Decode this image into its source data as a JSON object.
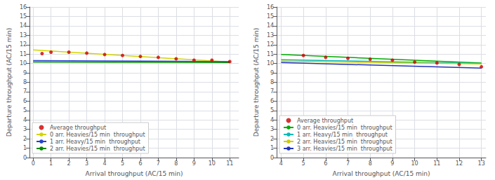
{
  "chart_data": [
    {
      "type": "scatter",
      "xlabel": "Arrival throughput (AC/15 min)",
      "ylabel": "Departure throughput (AC/15 min)",
      "xlim": [
        -0.2,
        11.5
      ],
      "ylim": [
        0,
        16
      ],
      "xticks": [
        0,
        1,
        2,
        3,
        4,
        5,
        6,
        7,
        8,
        9,
        10,
        11
      ],
      "yticks": [
        0,
        1,
        2,
        3,
        4,
        5,
        6,
        7,
        8,
        9,
        10,
        11,
        12,
        13,
        14,
        15,
        16
      ],
      "grid": true,
      "legend": "lower left",
      "series": [
        {
          "name": "Average throughput",
          "type": "scatter",
          "color": "#cc0000",
          "x": [
            0.5,
            1,
            2,
            3,
            4,
            5,
            6,
            7,
            8,
            9,
            10,
            11
          ],
          "values": [
            11.05,
            11.2,
            11.2,
            11.1,
            10.95,
            10.85,
            10.75,
            10.65,
            10.5,
            10.35,
            10.35,
            10.2
          ]
        },
        {
          "name": "0 arr. Heavies/15 min  throughput",
          "type": "line",
          "color": "#d4d400",
          "x": [
            0,
            11
          ],
          "values": [
            11.45,
            10.15
          ]
        },
        {
          "name": "1 arr. Heavy/15 min  throughput",
          "type": "line",
          "color": "#2244cc",
          "x": [
            0,
            11
          ],
          "values": [
            10.3,
            10.2
          ]
        },
        {
          "name": "2 arr. Heavies/15 min  throughput",
          "type": "line",
          "color": "#008800",
          "x": [
            0,
            11
          ],
          "values": [
            10.15,
            10.1
          ]
        }
      ]
    },
    {
      "type": "scatter",
      "xlabel": "Arrival throughput (AC/15 min)",
      "ylabel": "Departure throughput (AC/15 min)",
      "xlim": [
        3.8,
        13.2
      ],
      "ylim": [
        0,
        16
      ],
      "xticks": [
        4,
        5,
        6,
        7,
        8,
        9,
        10,
        11,
        12,
        13
      ],
      "yticks": [
        0,
        1,
        2,
        3,
        4,
        5,
        6,
        7,
        8,
        9,
        10,
        11,
        12,
        13,
        14,
        15,
        16
      ],
      "grid": true,
      "legend": "lower left",
      "series": [
        {
          "name": "Average throughput",
          "type": "scatter",
          "color": "#cc0000",
          "x": [
            5,
            6,
            7,
            8,
            9,
            10,
            11,
            12,
            13
          ],
          "values": [
            10.85,
            10.65,
            10.55,
            10.45,
            10.35,
            10.15,
            10.05,
            9.9,
            9.65
          ]
        },
        {
          "name": "0 arr. Heavies/15 min  throughput",
          "type": "line",
          "color": "#00aa00",
          "x": [
            4,
            13
          ],
          "values": [
            10.95,
            10.05
          ]
        },
        {
          "name": "1 arr. Heavy/15 min  throughput",
          "type": "line",
          "color": "#00bbbb",
          "x": [
            4,
            13
          ],
          "values": [
            10.4,
            10.0
          ]
        },
        {
          "name": "2 arr. Heavies/15 min  throughput",
          "type": "line",
          "color": "#cccc00",
          "x": [
            4,
            13
          ],
          "values": [
            10.25,
            9.95
          ]
        },
        {
          "name": "3 arr. Heavies/15 min  throughput",
          "type": "line",
          "color": "#2233bb",
          "x": [
            4,
            13
          ],
          "values": [
            10.1,
            9.5
          ]
        }
      ]
    }
  ]
}
